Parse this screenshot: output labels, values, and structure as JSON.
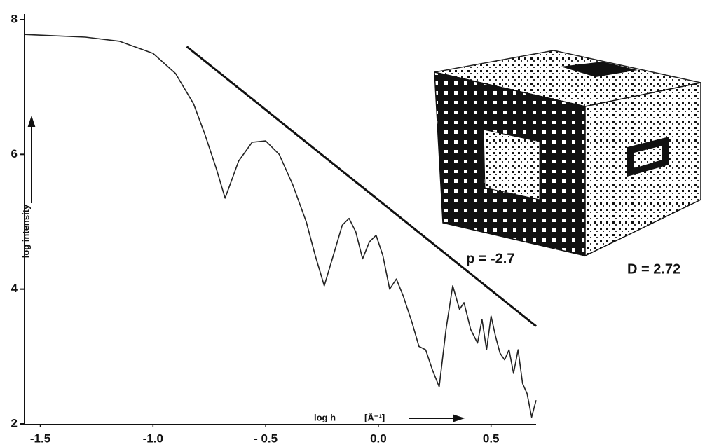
{
  "chart_data": {
    "type": "line",
    "y_label": "log intensity",
    "x_label": "log h",
    "x_unit": "[Å⁻¹]",
    "x": [
      -1.57,
      -1.3,
      -1.15,
      -1.0,
      -0.9,
      -0.82,
      -0.77,
      -0.72,
      -0.68,
      -0.62,
      -0.56,
      -0.5,
      -0.44,
      -0.38,
      -0.32,
      -0.28,
      -0.24,
      -0.2,
      -0.16,
      -0.13,
      -0.1,
      -0.07,
      -0.04,
      -0.01,
      0.02,
      0.05,
      0.08,
      0.11,
      0.15,
      0.18,
      0.21,
      0.24,
      0.27,
      0.3,
      0.33,
      0.36,
      0.38,
      0.41,
      0.44,
      0.46,
      0.48,
      0.5,
      0.52,
      0.54,
      0.56,
      0.58,
      0.6,
      0.62,
      0.64,
      0.66,
      0.68,
      0.7
    ],
    "values": [
      7.78,
      7.74,
      7.68,
      7.5,
      7.2,
      6.75,
      6.3,
      5.8,
      5.35,
      5.9,
      6.18,
      6.2,
      6.0,
      5.55,
      5.0,
      4.5,
      4.05,
      4.5,
      4.95,
      5.05,
      4.85,
      4.45,
      4.7,
      4.8,
      4.5,
      4.0,
      4.15,
      3.9,
      3.5,
      3.15,
      3.1,
      2.8,
      2.55,
      3.4,
      4.05,
      3.7,
      3.8,
      3.4,
      3.2,
      3.55,
      3.1,
      3.6,
      3.3,
      3.05,
      2.95,
      3.1,
      2.75,
      3.1,
      2.6,
      2.45,
      2.1,
      2.35
    ],
    "color": "#222222",
    "fit_line": {
      "x": [
        -0.85,
        0.7
      ],
      "values": [
        7.6,
        3.45
      ],
      "color": "#111111"
    },
    "annotations": {
      "slope": "p = -2.7",
      "dimension": "D = 2.72"
    },
    "xlim": [
      -1.57,
      0.7
    ],
    "ylim": [
      2,
      8
    ],
    "xticks": [
      -1.5,
      {
        "value": -1.0,
        "label": "-1.0"
      },
      {
        "value": -0.5,
        "label": "- 0.5"
      },
      {
        "value": 0.0,
        "label": "0.0"
      },
      0.5
    ],
    "yticks": [
      2,
      4,
      6,
      8
    ]
  }
}
